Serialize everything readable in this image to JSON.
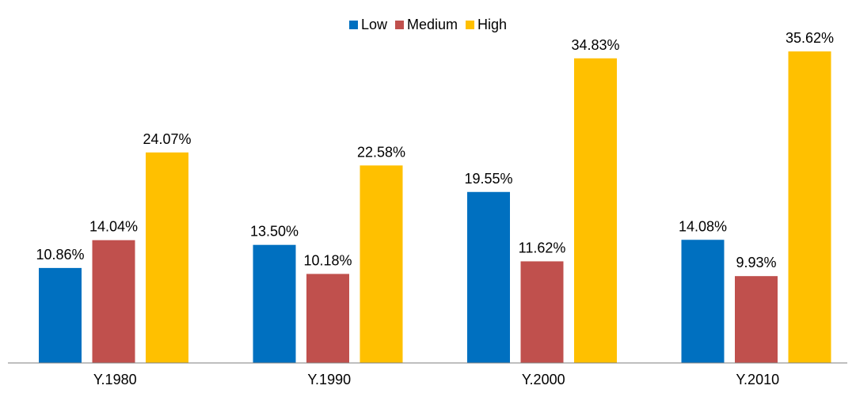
{
  "chart_data": {
    "type": "bar",
    "title": "",
    "xlabel": "",
    "ylabel": "",
    "categories": [
      "Y.1980",
      "Y.1990",
      "Y.2000",
      "Y.2010"
    ],
    "series": [
      {
        "name": "Low",
        "color": "#0070C0",
        "values": [
          10.86,
          13.5,
          19.55,
          14.08
        ],
        "labels": [
          "10.86%",
          "13.50%",
          "19.55%",
          "14.08%"
        ]
      },
      {
        "name": "Medium",
        "color": "#C0504D",
        "values": [
          14.04,
          10.18,
          11.62,
          9.93
        ],
        "labels": [
          "14.04%",
          "10.18%",
          "11.62%",
          "9.93%"
        ]
      },
      {
        "name": "High",
        "color": "#FFC000",
        "values": [
          24.07,
          22.58,
          34.83,
          35.62
        ],
        "labels": [
          "24.07%",
          "22.58%",
          "34.83%",
          "35.62%"
        ]
      }
    ],
    "ylim": [
      0,
      41.5
    ],
    "grid": false,
    "legend_position": "top-center"
  }
}
